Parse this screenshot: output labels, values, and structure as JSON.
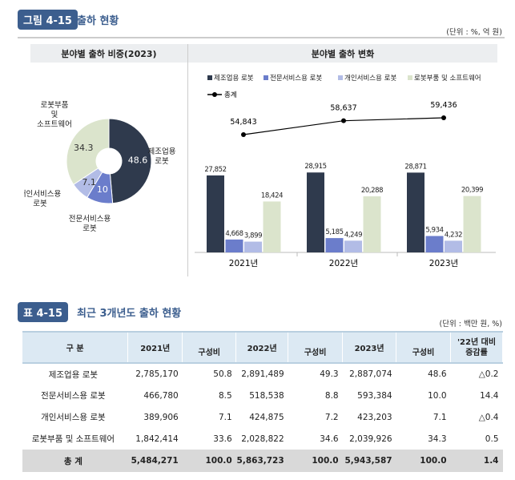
{
  "figure": {
    "badge": "그림 4-15",
    "title": "출하 현황",
    "unit": "(단위 : %, 억 원)",
    "left_header": "분야별 출하 비중(2023)",
    "right_header": "분야별 출하 변화"
  },
  "chart_data": [
    {
      "type": "pie",
      "title": "분야별 출하 비중(2023)",
      "categories": [
        "제조업용 로봇",
        "전문서비스용 로봇",
        "개인서비스용 로봇",
        "로봇부품 및 소프트웨어"
      ],
      "labels": [
        "제조업용\n로봇",
        "전문서비스용\n로봇",
        "개인서비스용\n로봇",
        "로봇부품\n및\n소프트웨어"
      ],
      "values": [
        48.6,
        10.0,
        7.1,
        34.3
      ],
      "colors": [
        "#2f3a4d",
        "#6b7dcb",
        "#b2bce6",
        "#dbe4cc"
      ],
      "donut": true
    },
    {
      "type": "bar",
      "title": "분야별 출하 변화",
      "categories": [
        "2021년",
        "2022년",
        "2023년"
      ],
      "legend_placement": "top",
      "series": [
        {
          "name": "제조업용 로봇",
          "values": [
            27852,
            28915,
            28871
          ],
          "color": "#2f3a4d"
        },
        {
          "name": "전문서비스용 로봇",
          "values": [
            4668,
            5185,
            5934
          ],
          "color": "#6b7dcb"
        },
        {
          "name": "개인서비스용 로봇",
          "values": [
            3899,
            4249,
            4232
          ],
          "color": "#b2bce6"
        },
        {
          "name": "로봇부품 및 소프트웨어",
          "values": [
            18424,
            20288,
            20399
          ],
          "color": "#dbe4cc"
        }
      ],
      "line": {
        "name": "총계",
        "type": "line",
        "values": [
          54843,
          58637,
          59436
        ],
        "color": "#000000"
      },
      "value_labels": {
        "bars": [
          [
            "27,852",
            "4,668",
            "3,899",
            "18,424"
          ],
          [
            "28,915",
            "5,185",
            "4,249",
            "20,288"
          ],
          [
            "28,871",
            "5,934",
            "4,232",
            "20,399"
          ]
        ],
        "line": [
          "54,843",
          "58,637",
          "59,436"
        ]
      }
    }
  ],
  "table": {
    "badge": "표 4-15",
    "title": "최근 3개년도 출하 현황",
    "unit": "(단위 : 백만 원, %)",
    "headers": [
      "구 분",
      "2021년",
      "구성비",
      "2022년",
      "구성비",
      "2023년",
      "구성비",
      "'22년 대비\n증감률"
    ],
    "rows": [
      [
        "제조업용 로봇",
        "2,785,170",
        "50.8",
        "2,891,489",
        "49.3",
        "2,887,074",
        "48.6",
        "△0.2"
      ],
      [
        "전문서비스용 로봇",
        "466,780",
        "8.5",
        "518,538",
        "8.8",
        "593,384",
        "10.0",
        "14.4"
      ],
      [
        "개인서비스용 로봇",
        "389,906",
        "7.1",
        "424,875",
        "7.2",
        "423,203",
        "7.1",
        "△0.4"
      ],
      [
        "로봇부품 및 소프트웨어",
        "1,842,414",
        "33.6",
        "2,028,822",
        "34.6",
        "2,039,926",
        "34.3",
        "0.5"
      ],
      [
        "총 계",
        "5,484,271",
        "100.0",
        "5,863,723",
        "100.0",
        "5,943,587",
        "100.0",
        "1.4"
      ]
    ]
  }
}
